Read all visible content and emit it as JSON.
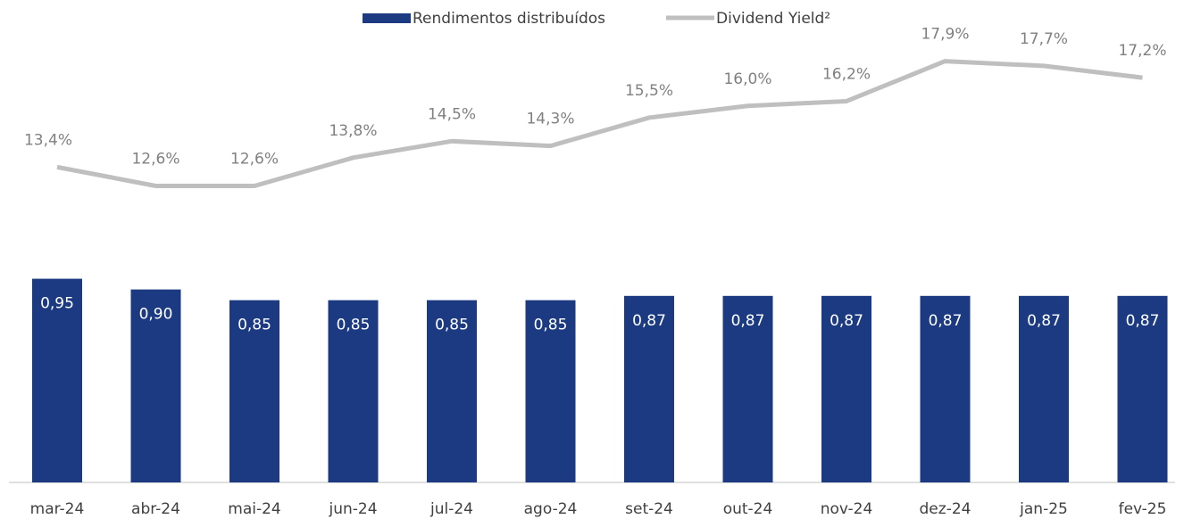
{
  "chart_data": {
    "type": "bar+line",
    "categories": [
      "mar-24",
      "abr-24",
      "mai-24",
      "jun-24",
      "jul-24",
      "ago-24",
      "set-24",
      "out-24",
      "nov-24",
      "dez-24",
      "jan-25",
      "fev-25"
    ],
    "series": [
      {
        "name": "Rendimentos distribuídos",
        "type": "bar",
        "color": "#1b3a82",
        "values": [
          0.95,
          0.9,
          0.85,
          0.85,
          0.85,
          0.85,
          0.87,
          0.87,
          0.87,
          0.87,
          0.87,
          0.87
        ],
        "value_labels": [
          "0,95",
          "0,90",
          "0,85",
          "0,85",
          "0,85",
          "0,85",
          "0,87",
          "0,87",
          "0,87",
          "0,87",
          "0,87",
          "0,87"
        ]
      },
      {
        "name": "Dividend Yield²",
        "type": "line",
        "axis": "y2",
        "color": "#bfbfbf",
        "values": [
          13.4,
          12.6,
          12.6,
          13.8,
          14.5,
          14.3,
          15.5,
          16.0,
          16.2,
          17.9,
          17.7,
          17.2
        ],
        "value_labels": [
          "13,4%",
          "12,6%",
          "12,6%",
          "13,8%",
          "14,5%",
          "14,3%",
          "15,5%",
          "16,0%",
          "16,2%",
          "17,9%",
          "17,7%",
          "17,2%"
        ]
      }
    ],
    "ylim": [
      0,
      2.25
    ],
    "y2lim": [
      0,
      20.5
    ],
    "legend": "top"
  }
}
